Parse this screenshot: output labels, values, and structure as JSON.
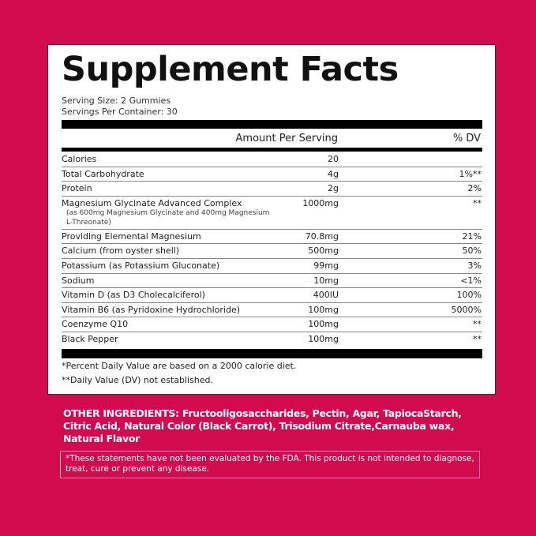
{
  "title": "Supplement Facts",
  "serving_size": "Serving Size: 2 Gummies",
  "servings_per_container": "Servings Per Container: 30",
  "header": {
    "amount": "Amount Per Serving",
    "dv": "% DV"
  },
  "rows": [
    {
      "name": "Calories",
      "amount": "20",
      "dv": ""
    },
    {
      "name": "Total Carbohydrate",
      "amount": "4g",
      "dv": "1%**"
    },
    {
      "name": "Protein",
      "amount": "2g",
      "dv": "2%"
    },
    {
      "name": "Magnesium Glycinate Advanced Complex",
      "sub": "(as 600mg Magnesium Glycinate and 400mg Magnesium L-Threonate)",
      "amount": "1000mg",
      "dv": "**"
    },
    {
      "name": "Providing Elemental Magnesium",
      "amount": "70.8mg",
      "dv": "21%"
    },
    {
      "name": "Calcium (from oyster shell)",
      "amount": "500mg",
      "dv": "50%"
    },
    {
      "name": "Potassium (as Potassium Gluconate)",
      "amount": "99mg",
      "dv": "3%"
    },
    {
      "name": "Sodium",
      "amount": "10mg",
      "dv": "<1%"
    },
    {
      "name": "Vitamin D (as D3 Cholecalciferol)",
      "amount": "400IU",
      "dv": "100%"
    },
    {
      "name": "Vitamin B6 (as Pyridoxine Hydrochloride)",
      "amount": "100mg",
      "dv": "5000%"
    },
    {
      "name": "Coenzyme Q10",
      "amount": "100mg",
      "dv": "**"
    },
    {
      "name": "Black Pepper",
      "amount": "100mg",
      "dv": "**"
    }
  ],
  "footnotes": [
    "*Percent Daily Value are based on a 2000 calorie diet.",
    "**Daily Value (DV) not established."
  ],
  "other_ingredients": "OTHER INGREDIENTS: Fructooligosaccharides, Pectin, Agar, TapiocaStarch, Citric Acid, Natural Color (Black Carrot), Trisodium Citrate,Carnauba wax, Natural Flavor",
  "fda_disclaimer": "*These statements have not been evaluated by the FDA.  This product is not intended to diagnose, treat, cure or  prevent any disease.",
  "colors": {
    "background": "#d20a4e",
    "panel": "#ffffff"
  }
}
